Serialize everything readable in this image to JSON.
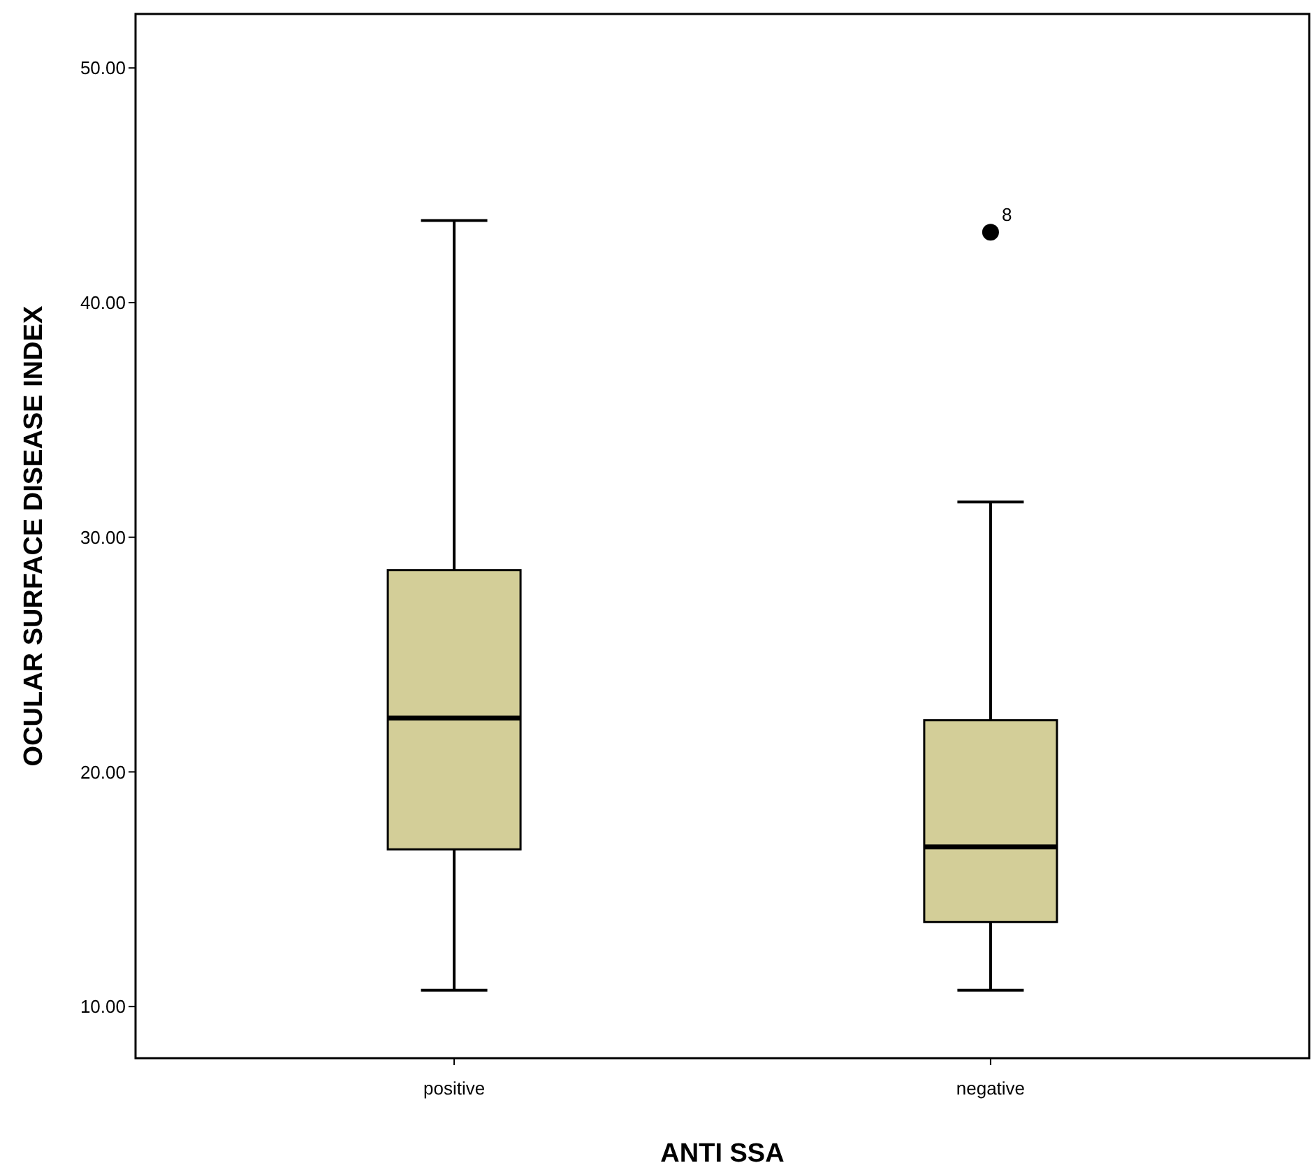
{
  "chart_data": {
    "type": "box",
    "xlabel": "ANTI SSA",
    "ylabel": "OCULAR SURFACE DISEASE INDEX",
    "categories": [
      "positive",
      "negative"
    ],
    "color": "#d3ce98",
    "boxes": [
      {
        "low": 10.7,
        "q1": 16.7,
        "median": 22.3,
        "q3": 28.6,
        "high": 43.5
      },
      {
        "low": 10.7,
        "q1": 13.6,
        "median": 16.8,
        "q3": 22.2,
        "high": 31.5,
        "outliers": [
          43.0
        ]
      }
    ],
    "annotations": [
      "8"
    ],
    "ylim": [
      7.8,
      52.3
    ],
    "yticks": [
      {
        "value": 10,
        "label": "10.00"
      },
      {
        "value": 20,
        "label": "20.00"
      },
      {
        "value": 30,
        "label": "30.00"
      },
      {
        "value": 40,
        "label": "40.00"
      },
      {
        "value": 50,
        "label": "50.00"
      }
    ],
    "grid": false
  }
}
